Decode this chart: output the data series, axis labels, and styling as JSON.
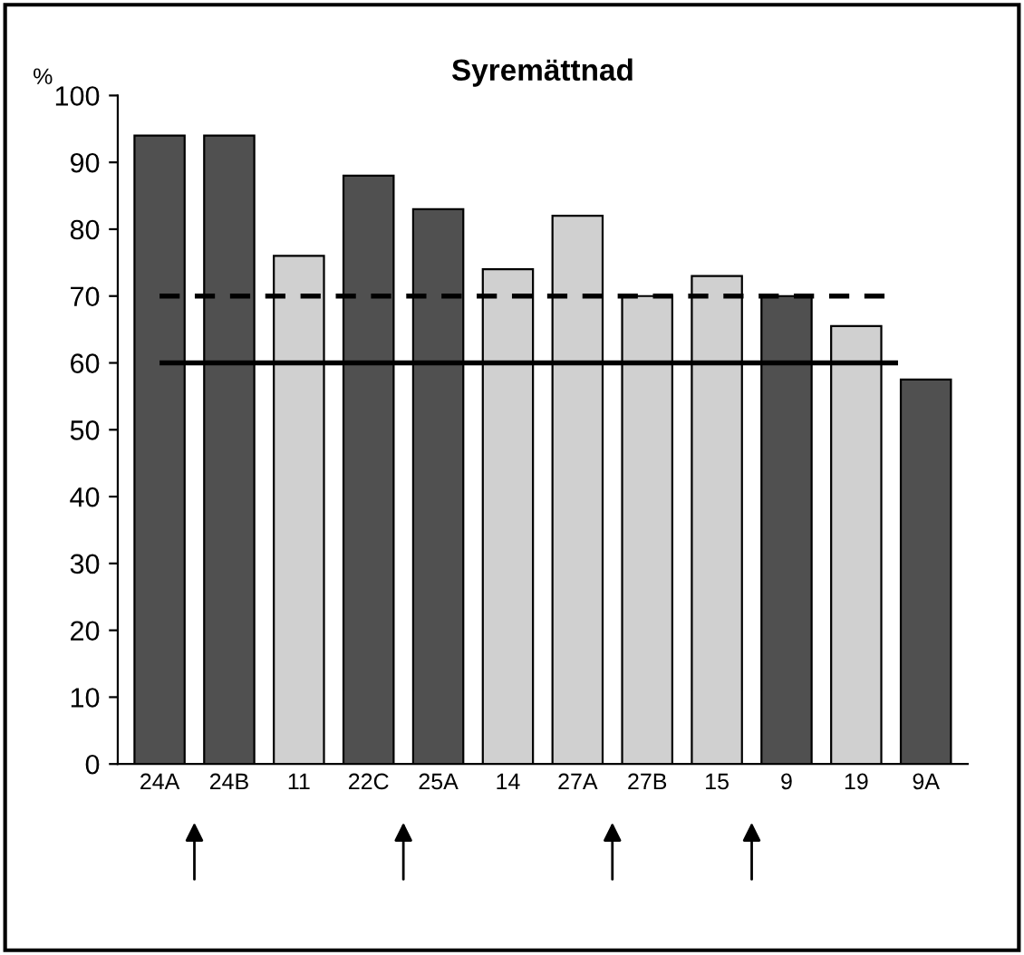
{
  "chart_data": {
    "type": "bar",
    "title": "Syremättnad",
    "ylabel": "%",
    "categories": [
      "24A",
      "24B",
      "11",
      "22C",
      "25A",
      "14",
      "27A",
      "27B",
      "15",
      "9",
      "19",
      "9A"
    ],
    "values": [
      94,
      94,
      76,
      88,
      83,
      74,
      82,
      70,
      73,
      70,
      65.5,
      57.5
    ],
    "colors": [
      "#505050",
      "#505050",
      "#d0d0d0",
      "#505050",
      "#505050",
      "#d0d0d0",
      "#d0d0d0",
      "#d0d0d0",
      "#d0d0d0",
      "#505050",
      "#d0d0d0",
      "#505050"
    ],
    "ylim": [
      0,
      100
    ],
    "yticks": [
      0,
      10,
      20,
      30,
      40,
      50,
      60,
      70,
      80,
      90,
      100
    ],
    "ref_lines": [
      {
        "axis": "y",
        "value": 70,
        "label": null,
        "color": "#000000",
        "line_style": "dashed"
      },
      {
        "axis": "y",
        "value": 60,
        "label": null,
        "color": "#000000",
        "line_style": "solid"
      }
    ],
    "grid": false,
    "legend": false
  }
}
